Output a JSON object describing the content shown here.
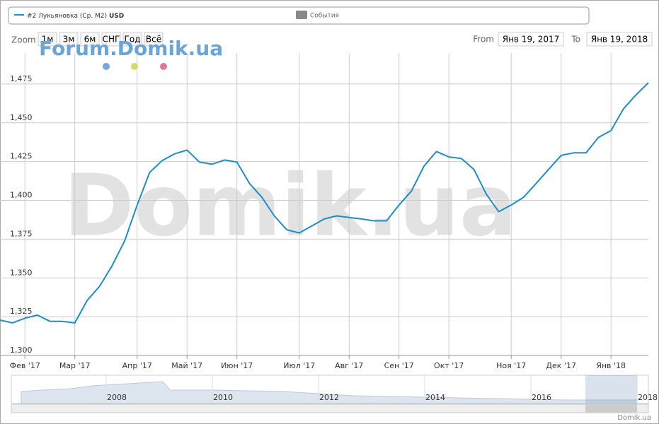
{
  "chart_data": {
    "type": "line",
    "categories": [
      null,
      null,
      "Фев '17",
      null,
      null,
      null,
      "Мар '17",
      null,
      null,
      null,
      null,
      "Апр '17",
      null,
      null,
      null,
      "Май '17",
      null,
      null,
      null,
      "Июн '17",
      null,
      null,
      null,
      null,
      "Июл '17",
      null,
      null,
      null,
      "Авг '17",
      null,
      null,
      null,
      "Сен '17",
      null,
      null,
      null,
      "Окт '17",
      null,
      null,
      null,
      null,
      "Ноя '17",
      null,
      null,
      null,
      "Дек '17",
      null,
      null,
      null,
      "Янв '18",
      null,
      null,
      null
    ],
    "series": [
      {
        "name": "#2 Лукьяновка (Ср. М2)",
        "unit": "USD",
        "color": "#1f8dc8",
        "values": [
          1322.8,
          1321,
          1324,
          1326,
          1322,
          1322,
          1321,
          1335.6,
          1344.7,
          1358,
          1374,
          1397,
          1418,
          1425.6,
          1430,
          1432.4,
          1424.7,
          1423.3,
          1426,
          1424.7,
          1411,
          1402,
          1390,
          1381,
          1379,
          1383.5,
          1388,
          1390,
          1389,
          1388,
          1386.8,
          1386.8,
          1397,
          1406,
          1422,
          1431.5,
          1428,
          1427,
          1420,
          1404,
          1392.7,
          1397,
          1402,
          1411,
          1420,
          1429,
          1430.6,
          1430.6,
          1440.6,
          1445,
          1459,
          1468,
          1475.8
        ]
      }
    ],
    "ylim": [
      1300,
      1495
    ],
    "yticks": [
      {
        "value": 1300,
        "label": "1,300"
      },
      {
        "value": 1325,
        "label": "1,325"
      },
      {
        "value": 1350,
        "label": "1,350"
      },
      {
        "value": 1375,
        "label": "1,375"
      },
      {
        "value": 1400,
        "label": "1,400"
      },
      {
        "value": 1425,
        "label": "1,425"
      },
      {
        "value": 1450,
        "label": "1,450"
      },
      {
        "value": 1475,
        "label": "1,475"
      }
    ],
    "grid": true,
    "events_legend": "События"
  },
  "ui": {
    "zoom_label": "Zoom",
    "zoom_buttons": [
      "1м",
      "3м",
      "6м",
      "СНГ",
      "Год",
      "Всё"
    ],
    "from_label": "From",
    "from_value": "Янв 19, 2017",
    "to_label": "To",
    "to_value": "Янв 19, 2018",
    "watermark_small": "Forum.Domik.ua",
    "watermark_big": "Domik.ua",
    "navigator_years": [
      "2008",
      "2010",
      "2012",
      "2014",
      "2016",
      "2018"
    ],
    "credit": "Domik.ua"
  }
}
